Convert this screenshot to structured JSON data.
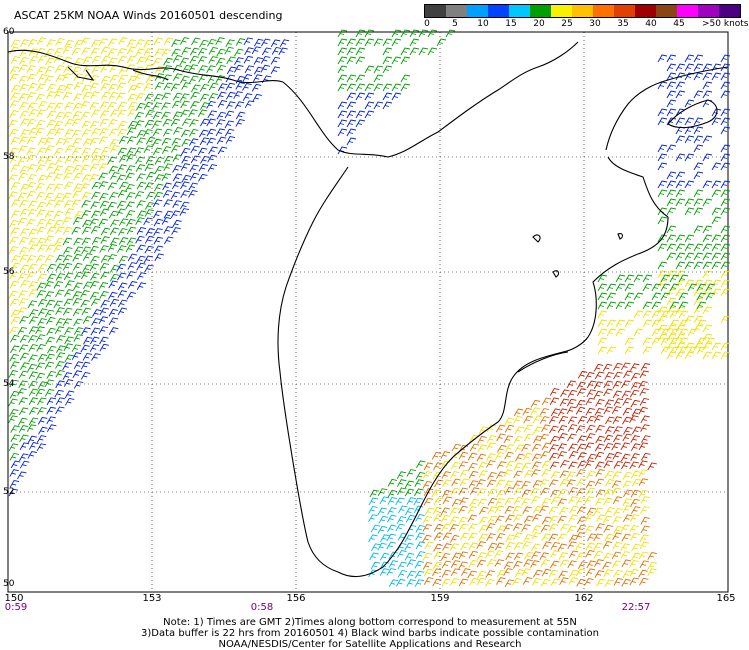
{
  "title": "ASCAT 25KM NOAA Winds 20160501 descending",
  "legend": {
    "colors": [
      "#404040",
      "#808080",
      "#00a0ff",
      "#0044ff",
      "#00c8ff",
      "#00a000",
      "#f8f000",
      "#ffc000",
      "#ff7000",
      "#e04000",
      "#a00000",
      "#8b4513",
      "#ff00ff",
      "#a000c0",
      "#4b0082"
    ],
    "labels": [
      "0",
      "5",
      "10",
      "15",
      "20",
      "25",
      "30",
      "35",
      "40",
      "45",
      ">50 knots"
    ]
  },
  "axes": {
    "lat_labels": [
      "60",
      "58",
      "56",
      "54",
      "52",
      "50"
    ],
    "lon_labels": [
      "150",
      "153",
      "156",
      "159",
      "162",
      "165"
    ],
    "time_labels": [
      "0:59",
      "0:58",
      "22:57"
    ]
  },
  "notes": [
    "Note: 1) Times are GMT 2)Times along bottom correspond to measurement at 55N",
    "3)Data buffer is 22 hrs from 20160501 4) Black wind barbs indicate possible contamination",
    "NOAA/NESDIS/Center for Satellite Applications and Research"
  ],
  "colors": {
    "yellow": "#f0e000",
    "green": "#00a000",
    "blue": "#0020e0",
    "cyan": "#00b8e8",
    "orange": "#e07000",
    "red": "#c02000"
  }
}
